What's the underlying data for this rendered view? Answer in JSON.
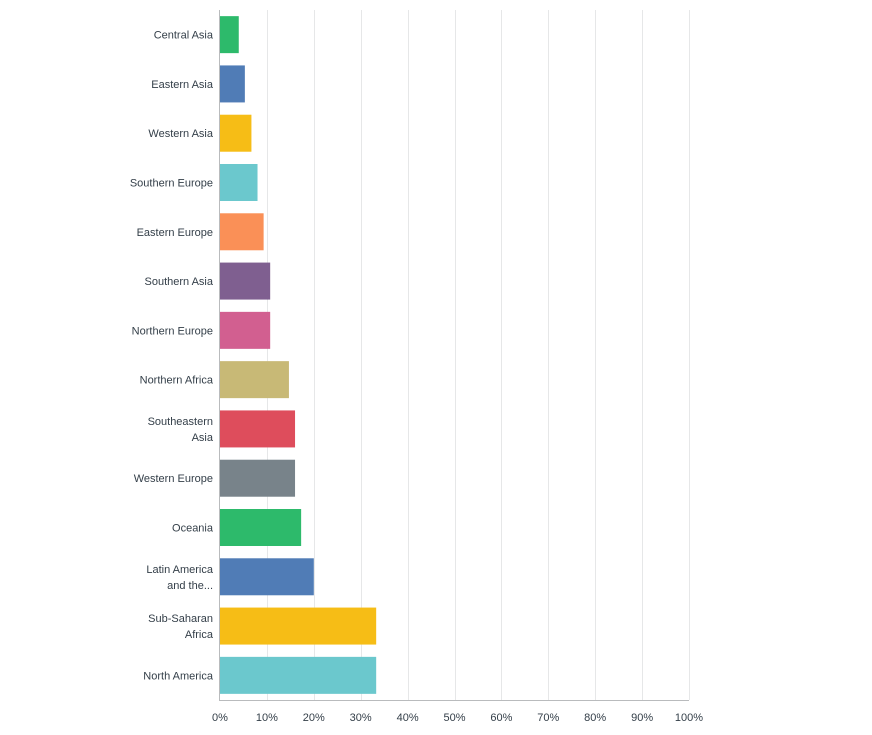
{
  "chart_data": {
    "type": "bar",
    "orientation": "horizontal",
    "categories": [
      [
        "Central Asia"
      ],
      [
        "Eastern Asia"
      ],
      [
        "Western Asia"
      ],
      [
        "Southern Europe"
      ],
      [
        "Eastern Europe"
      ],
      [
        "Southern Asia"
      ],
      [
        "Northern Europe"
      ],
      [
        "Northern Africa"
      ],
      [
        "Southeastern",
        "Asia"
      ],
      [
        "Western Europe"
      ],
      [
        "Oceania"
      ],
      [
        "Latin America",
        "and the..."
      ],
      [
        "Sub-Saharan",
        "Africa"
      ],
      [
        "North America"
      ]
    ],
    "values": [
      4,
      5.3,
      6.7,
      8,
      9.3,
      10.7,
      10.7,
      14.7,
      16,
      16,
      17.3,
      20,
      33.3,
      33.3
    ],
    "colors": [
      "#2dba6b",
      "#507cb6",
      "#f6bd16",
      "#6bc8cd",
      "#fa9057",
      "#7f5f90",
      "#d25f90",
      "#c8b976",
      "#de4d5c",
      "#78838a",
      "#2dba6b",
      "#507cb6",
      "#f6bd16",
      "#6bc8cd"
    ],
    "xlim": [
      0,
      100
    ],
    "xticks": [
      "0%",
      "10%",
      "20%",
      "30%",
      "40%",
      "50%",
      "60%",
      "70%",
      "80%",
      "90%",
      "100%"
    ],
    "grid": true,
    "title": "",
    "xlabel": "",
    "ylabel": ""
  }
}
